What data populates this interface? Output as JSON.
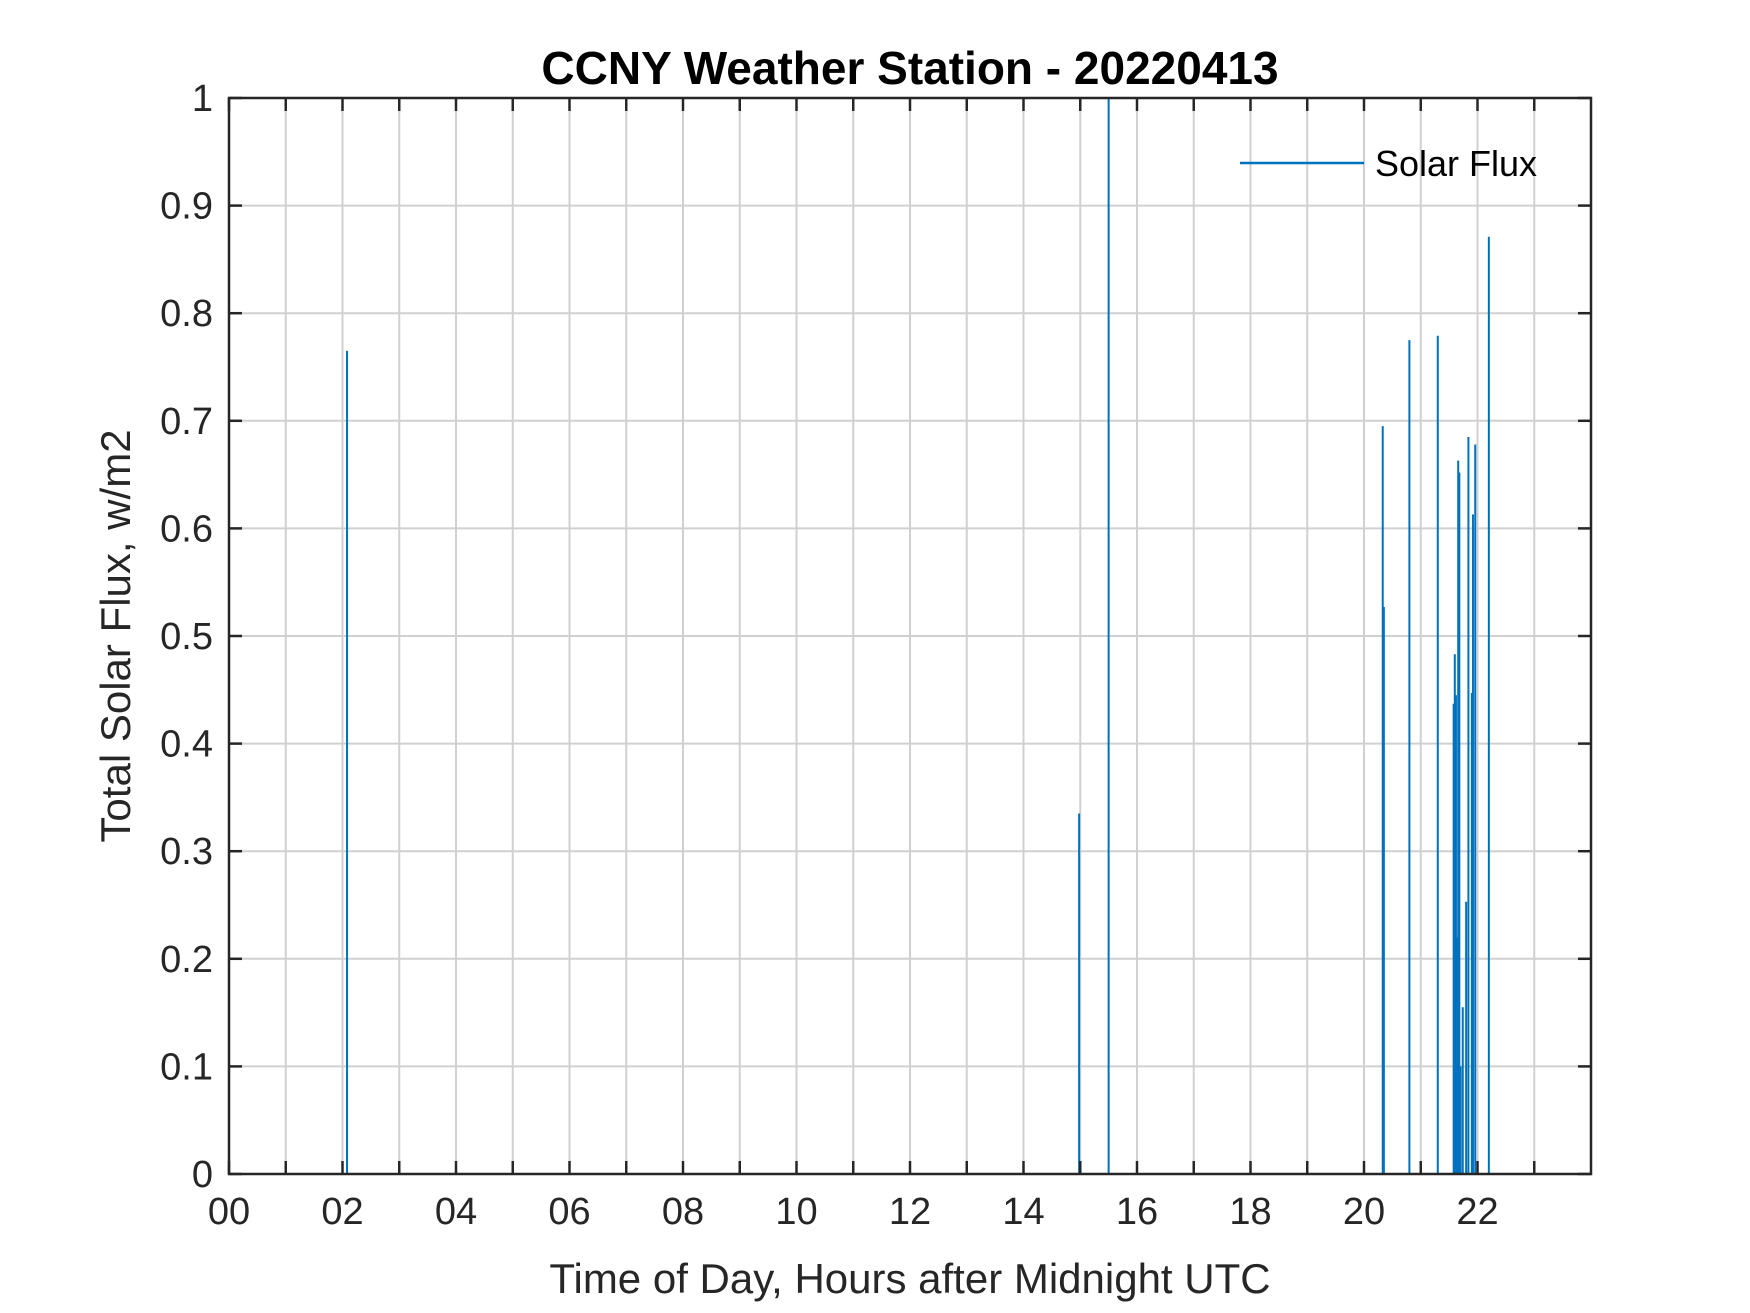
{
  "chart_data": {
    "type": "line",
    "title": "CCNY Weather Station - 20220413",
    "xlabel": "Time of Day, Hours after Midnight UTC",
    "ylabel": "Total Solar Flux, w/m2",
    "xlim": [
      0,
      24
    ],
    "ylim": [
      0,
      1
    ],
    "grid": true,
    "x_ticks": [
      0,
      2,
      4,
      6,
      8,
      10,
      12,
      14,
      16,
      18,
      20,
      22
    ],
    "x_tick_labels": [
      "00",
      "02",
      "04",
      "06",
      "08",
      "10",
      "12",
      "14",
      "16",
      "18",
      "20",
      "22"
    ],
    "x_minor_ticks": [
      1,
      3,
      5,
      7,
      9,
      11,
      13,
      15,
      17,
      19,
      21,
      23
    ],
    "y_ticks": [
      0,
      0.1,
      0.2,
      0.3,
      0.4,
      0.5,
      0.6,
      0.7,
      0.8,
      0.9,
      1
    ],
    "y_tick_labels": [
      "0",
      "0.1",
      "0.2",
      "0.3",
      "0.4",
      "0.5",
      "0.6",
      "0.7",
      "0.8",
      "0.9",
      "1"
    ],
    "legend": {
      "placement": "top-right",
      "entries": [
        "Solar Flux"
      ]
    },
    "series": [
      {
        "name": "Solar Flux",
        "color": "#0072BD",
        "spikes": [
          {
            "x": 2.08,
            "y": 0.765
          },
          {
            "x": 14.98,
            "y": 0.335
          },
          {
            "x": 15.5,
            "y": 1.0
          },
          {
            "x": 20.33,
            "y": 0.695
          },
          {
            "x": 20.35,
            "y": 0.527
          },
          {
            "x": 20.8,
            "y": 0.775
          },
          {
            "x": 21.3,
            "y": 0.779
          },
          {
            "x": 21.58,
            "y": 0.437
          },
          {
            "x": 21.6,
            "y": 0.483
          },
          {
            "x": 21.62,
            "y": 0.445
          },
          {
            "x": 21.64,
            "y": 0.22
          },
          {
            "x": 21.66,
            "y": 0.663
          },
          {
            "x": 21.68,
            "y": 0.652
          },
          {
            "x": 21.7,
            "y": 0.1
          },
          {
            "x": 21.74,
            "y": 0.155
          },
          {
            "x": 21.8,
            "y": 0.253
          },
          {
            "x": 21.84,
            "y": 0.685
          },
          {
            "x": 21.9,
            "y": 0.447
          },
          {
            "x": 21.92,
            "y": 0.613
          },
          {
            "x": 21.96,
            "y": 0.678
          },
          {
            "x": 22.2,
            "y": 0.871
          }
        ]
      }
    ]
  }
}
